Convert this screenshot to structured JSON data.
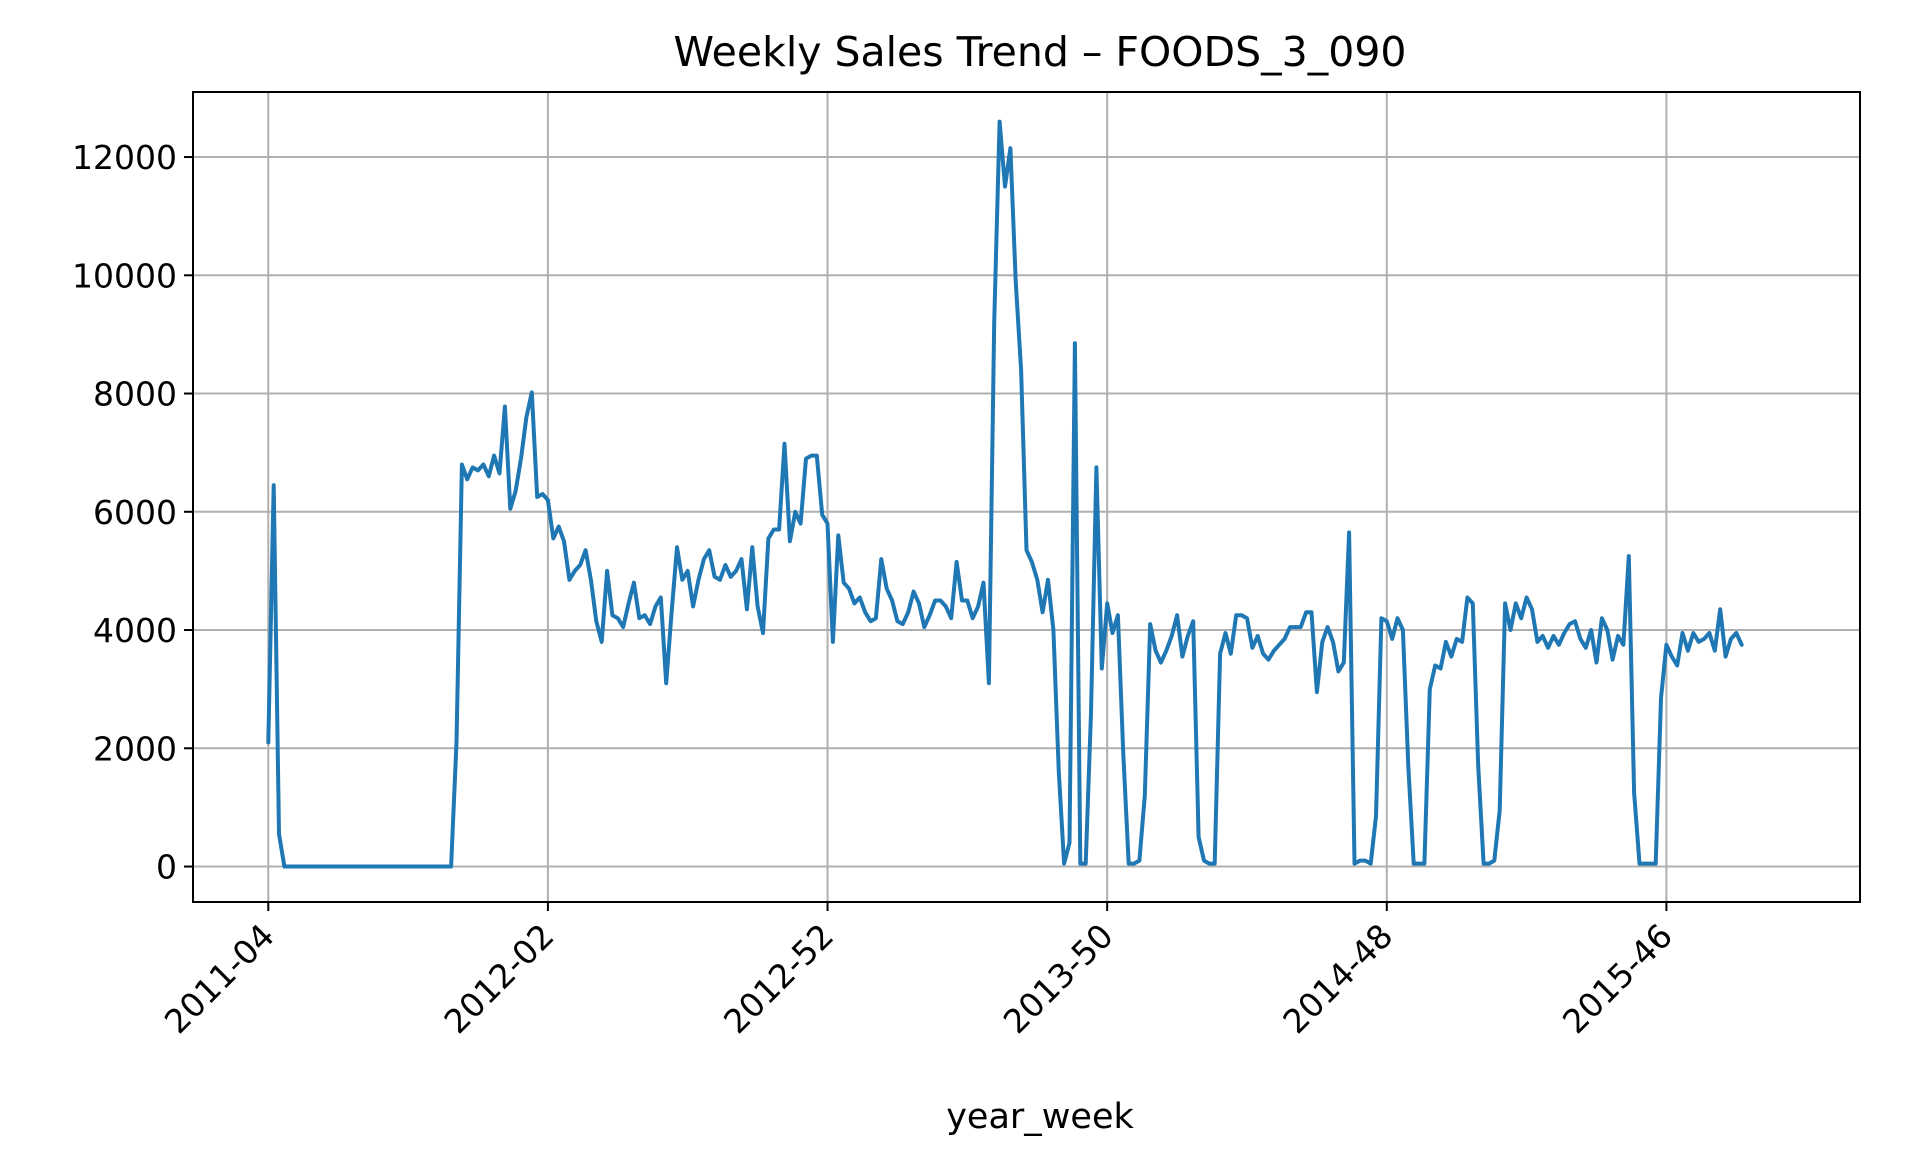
{
  "chart_data": {
    "type": "line",
    "title": "Weekly Sales Trend – FOODS_3_090",
    "xlabel": "year_week",
    "ylabel": "",
    "ylim": [
      -600,
      13100
    ],
    "xlim": [
      -14,
      296
    ],
    "grid": true,
    "legend": "none",
    "line_color": "#1f77b4",
    "x_ticks": [
      {
        "index": 0,
        "label": "2011-04"
      },
      {
        "index": 52,
        "label": "2012-02"
      },
      {
        "index": 104,
        "label": "2012-52"
      },
      {
        "index": 156,
        "label": "2013-50"
      },
      {
        "index": 208,
        "label": "2014-48"
      },
      {
        "index": 260,
        "label": "2015-46"
      }
    ],
    "y_ticks": [
      {
        "value": 0,
        "label": "0"
      },
      {
        "value": 2000,
        "label": "2000"
      },
      {
        "value": 4000,
        "label": "4000"
      },
      {
        "value": 6000,
        "label": "6000"
      },
      {
        "value": 8000,
        "label": "8000"
      },
      {
        "value": 10000,
        "label": "10000"
      },
      {
        "value": 12000,
        "label": "12000"
      }
    ],
    "series": [
      {
        "values": [
          2100,
          6450,
          550,
          0,
          0,
          0,
          0,
          0,
          0,
          0,
          0,
          0,
          0,
          0,
          0,
          0,
          0,
          0,
          0,
          0,
          0,
          0,
          0,
          0,
          0,
          0,
          0,
          0,
          0,
          0,
          0,
          0,
          0,
          0,
          0,
          2100,
          6800,
          6550,
          6750,
          6700,
          6800,
          6600,
          6950,
          6650,
          7780,
          6050,
          6350,
          6900,
          7600,
          8020,
          6250,
          6300,
          6200,
          5550,
          5750,
          5500,
          4850,
          5000,
          5100,
          5350,
          4850,
          4150,
          3800,
          5000,
          4250,
          4200,
          4050,
          4450,
          4800,
          4200,
          4250,
          4100,
          4400,
          4550,
          3100,
          4300,
          5400,
          4850,
          5000,
          4400,
          4850,
          5200,
          5350,
          4900,
          4850,
          5100,
          4900,
          5000,
          5200,
          4350,
          5400,
          4400,
          3950,
          5550,
          5700,
          5700,
          7150,
          5500,
          6000,
          5800,
          6900,
          6950,
          6950,
          5950,
          5800,
          3800,
          5600,
          4800,
          4700,
          4450,
          4550,
          4300,
          4150,
          4200,
          5200,
          4700,
          4500,
          4150,
          4100,
          4300,
          4650,
          4450,
          4050,
          4250,
          4500,
          4500,
          4400,
          4200,
          5150,
          4500,
          4500,
          4200,
          4400,
          4800,
          3100,
          9200,
          12600,
          11500,
          12150,
          9900,
          8400,
          5350,
          5150,
          4850,
          4300,
          4850,
          4000,
          1600,
          50,
          400,
          8850,
          50,
          50,
          2600,
          6750,
          3350,
          4450,
          3950,
          4250,
          1900,
          50,
          50,
          100,
          1200,
          4100,
          3650,
          3450,
          3650,
          3900,
          4250,
          3550,
          3900,
          4150,
          500,
          100,
          50,
          50,
          3600,
          3950,
          3600,
          4250,
          4250,
          4200,
          3700,
          3900,
          3600,
          3500,
          3650,
          3750,
          3850,
          4050,
          4050,
          4050,
          4300,
          4300,
          2950,
          3800,
          4050,
          3800,
          3300,
          3450,
          5650,
          50,
          100,
          100,
          50,
          850,
          4200,
          4150,
          3850,
          4200,
          4000,
          1700,
          50,
          50,
          50,
          3000,
          3400,
          3350,
          3800,
          3550,
          3850,
          3800,
          4550,
          4450,
          1700,
          50,
          50,
          100,
          950,
          4450,
          4000,
          4450,
          4200,
          4550,
          4350,
          3800,
          3900,
          3700,
          3900,
          3750,
          3950,
          4100,
          4150,
          3850,
          3700,
          4000,
          3450,
          4200,
          4000,
          3500,
          3900,
          3750,
          5250,
          1250,
          50,
          50,
          50,
          50,
          2850,
          3750,
          3550,
          3400,
          3950,
          3650,
          3950,
          3800,
          3850,
          3950,
          3650,
          4350,
          3550,
          3850,
          3950,
          3750
        ]
      }
    ]
  }
}
